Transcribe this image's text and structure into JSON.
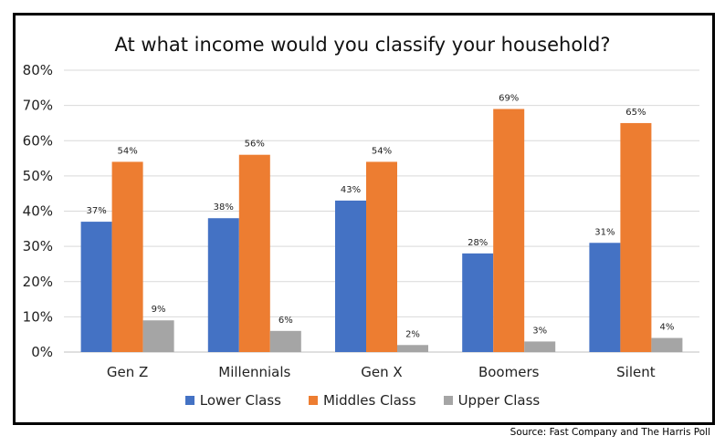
{
  "chart_data": {
    "type": "bar",
    "title": "At what income would you classify your household?",
    "categories": [
      "Gen Z",
      "Millennials",
      "Gen X",
      "Boomers",
      "Silent"
    ],
    "series": [
      {
        "name": "Lower Class",
        "color": "#4472c4",
        "values": [
          37,
          38,
          43,
          28,
          31
        ],
        "labels": [
          "37%",
          "38%",
          "43%",
          "28%",
          "31%"
        ]
      },
      {
        "name": "Middles Class",
        "color": "#ed7d31",
        "values": [
          54,
          56,
          54,
          69,
          65
        ],
        "labels": [
          "54%",
          "56%",
          "54%",
          "69%",
          "65%"
        ]
      },
      {
        "name": "Upper Class",
        "color": "#a5a5a5",
        "values": [
          9,
          6,
          2,
          3,
          4
        ],
        "labels": [
          "9%",
          "6%",
          "2%",
          "3%",
          "4%"
        ]
      }
    ],
    "yticks": [
      "0%",
      "10%",
      "20%",
      "30%",
      "40%",
      "50%",
      "60%",
      "70%",
      "80%"
    ],
    "ylim": [
      0,
      80
    ],
    "grid": true,
    "legend_position": "bottom"
  },
  "source": "Source: Fast Company and The Harris Poll"
}
